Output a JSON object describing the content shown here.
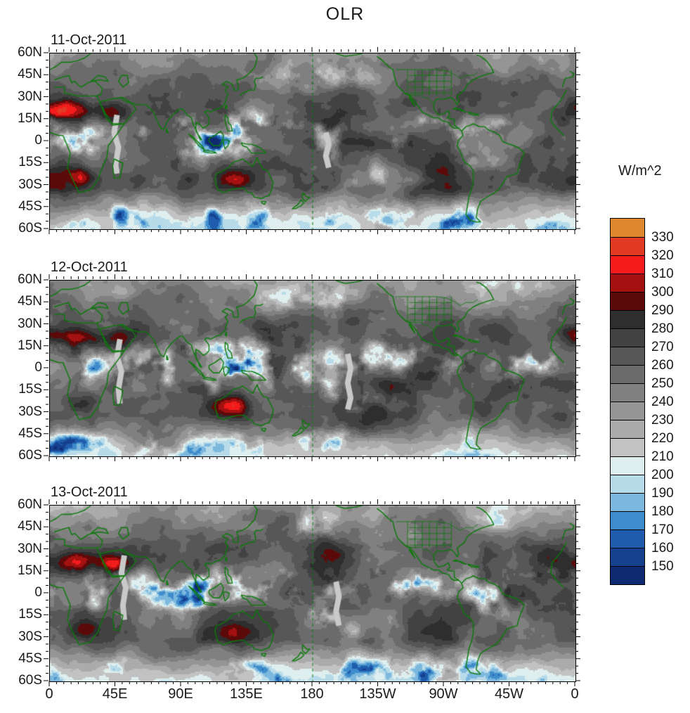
{
  "title": "OLR",
  "panels": [
    {
      "date": "11-Oct-2011"
    },
    {
      "date": "12-Oct-2011"
    },
    {
      "date": "13-Oct-2011"
    }
  ],
  "axes": {
    "lat_tick_labels": [
      "60N",
      "45N",
      "30N",
      "15N",
      "0",
      "15S",
      "30S",
      "45S",
      "60S"
    ],
    "lon_tick_labels": [
      "0",
      "45E",
      "90E",
      "135E",
      "180",
      "135W",
      "90W",
      "45W",
      "0"
    ]
  },
  "colorbar": {
    "units_label": "W/m^2",
    "tick_labels": [
      "330",
      "320",
      "310",
      "300",
      "290",
      "280",
      "270",
      "260",
      "250",
      "240",
      "230",
      "220",
      "210",
      "200",
      "190",
      "180",
      "170",
      "160",
      "150"
    ],
    "colors_top_to_bottom": [
      "#df872c",
      "#e23b24",
      "#f31b1b",
      "#a31111",
      "#5c0909",
      "#2e2e2e",
      "#424242",
      "#575757",
      "#6b6b6b",
      "#808080",
      "#959595",
      "#ababab",
      "#c2c2c2",
      "#dfeeee",
      "#b7dbe9",
      "#7cb8dd",
      "#3f8ccc",
      "#1f5cad",
      "#15418f",
      "#0f2a70"
    ]
  },
  "map": {
    "coastline_color": "#0a7a0a",
    "missing_data_color": "#c9c9c9"
  },
  "chart_data": {
    "type": "heatmap",
    "title": "OLR",
    "units": "W/m^2",
    "panels": [
      "11-Oct-2011",
      "12-Oct-2011",
      "13-Oct-2011"
    ],
    "contour_levels": [
      150,
      160,
      170,
      180,
      190,
      200,
      210,
      220,
      230,
      240,
      250,
      260,
      270,
      280,
      290,
      300,
      310,
      320,
      330
    ],
    "level_step": 10,
    "lon_range_deg": [
      0,
      360
    ],
    "lat_range_deg": [
      -60,
      60
    ],
    "lat_ticks": [
      "60N",
      "45N",
      "30N",
      "15N",
      "0",
      "15S",
      "30S",
      "45S",
      "60S"
    ],
    "lon_ticks": [
      "0",
      "45E",
      "90E",
      "135E",
      "180",
      "135W",
      "90W",
      "45W",
      "0"
    ],
    "legend_position": "right",
    "grid": false,
    "palette_low_to_high": [
      "#0f2a70",
      "#15418f",
      "#1f5cad",
      "#3f8ccc",
      "#7cb8dd",
      "#b7dbe9",
      "#dfeeee",
      "#c2c2c2",
      "#ababab",
      "#959595",
      "#808080",
      "#6b6b6b",
      "#575757",
      "#424242",
      "#2e2e2e",
      "#5c0909",
      "#a31111",
      "#f31b1b",
      "#e23b24",
      "#df872c"
    ],
    "description": "Three daily global maps (60N-60S, 0-360E) of outgoing longwave radiation; high OLR (red, >290) over Sahara, Arabia, southern Africa and central Australia; low OLR (blue, <210) in tropical convection over the Indian Ocean, Maritime Continent, SPCZ, Amazon, Congo and mid-latitude storm tracks; gray vertical swaths are missing satellite data; green coastlines and borders; dashed green date line at 180."
  }
}
